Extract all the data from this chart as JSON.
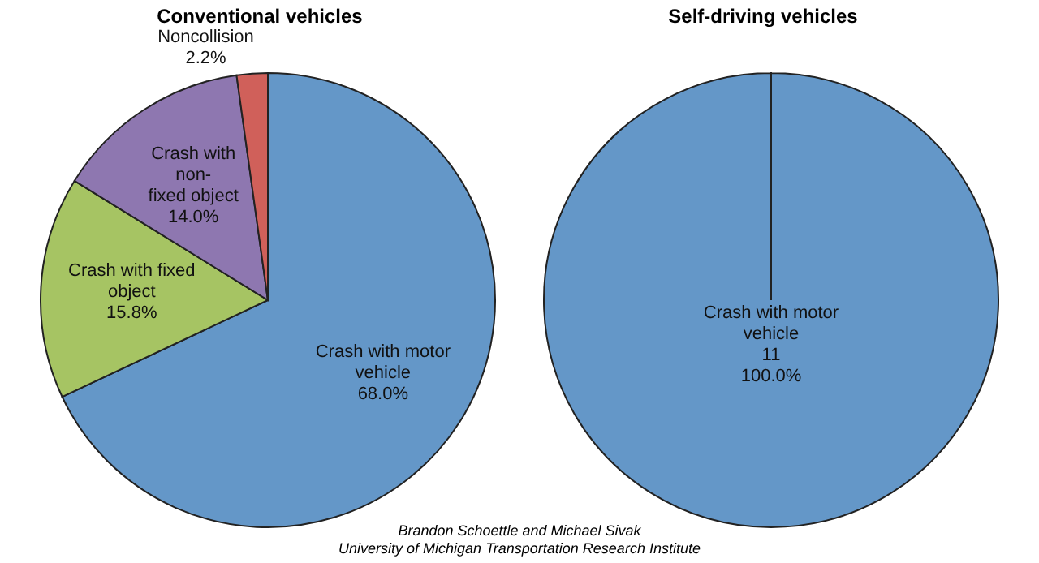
{
  "chart_data": [
    {
      "type": "pie",
      "title": "Conventional vehicles",
      "categories": [
        "Crash with motor vehicle",
        "Crash with fixed object",
        "Crash with non-fixed object",
        "Noncollision"
      ],
      "values": [
        68.0,
        15.8,
        14.0,
        2.2
      ],
      "colors": [
        "#6497c8",
        "#a6c463",
        "#8e77b0",
        "#d0605a"
      ],
      "value_labels": [
        "68.0%",
        "15.8%",
        "14.0%",
        "2.2%"
      ],
      "annotations": [
        "Brandon Schoettle and Michael Sivak",
        "University of Michigan Transportation Research Institute"
      ]
    },
    {
      "type": "pie",
      "title": "Self-driving vehicles",
      "categories": [
        "Crash with motor vehicle"
      ],
      "values": [
        11
      ],
      "colors": [
        "#6497c8"
      ],
      "value_labels": [
        "11"
      ],
      "annotations": [
        "100.0%"
      ]
    }
  ]
}
